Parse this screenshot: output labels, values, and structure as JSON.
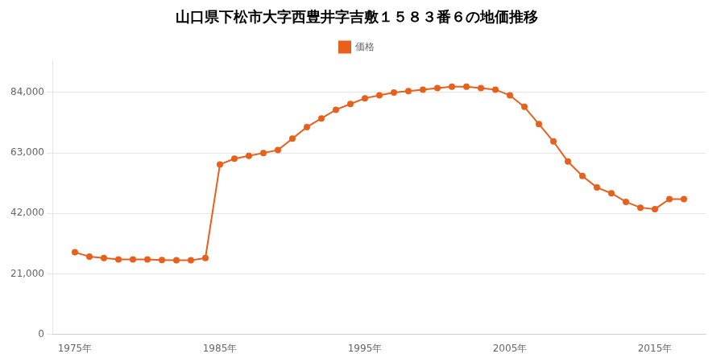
{
  "chart_data": {
    "type": "line",
    "title": "山口県下松市大字西豊井字吉敷１５８３番６の地価推移",
    "x": [
      1975,
      1976,
      1977,
      1978,
      1979,
      1980,
      1981,
      1982,
      1983,
      1984,
      1985,
      1986,
      1987,
      1988,
      1989,
      1990,
      1991,
      1992,
      1993,
      1994,
      1995,
      1996,
      1997,
      1998,
      1999,
      2000,
      2001,
      2002,
      2003,
      2004,
      2005,
      2006,
      2007,
      2008,
      2009,
      2010,
      2011,
      2012,
      2013,
      2014,
      2015,
      2016,
      2017
    ],
    "series": [
      {
        "name": "価格",
        "color": "#e8601c",
        "values": [
          28500,
          27000,
          26500,
          26000,
          26000,
          26000,
          25800,
          25700,
          25700,
          26500,
          59000,
          61000,
          62000,
          63000,
          64000,
          68000,
          72000,
          75000,
          78000,
          80000,
          82000,
          83000,
          84000,
          84500,
          85000,
          85500,
          86000,
          86000,
          85500,
          85000,
          83000,
          79000,
          73000,
          67000,
          60000,
          55000,
          51000,
          49000,
          46000,
          44000,
          43500,
          47000,
          47000
        ]
      }
    ],
    "xlim": [
      1973.5,
      2018.5
    ],
    "xticks": [
      {
        "value": 1975,
        "label": "1975年"
      },
      {
        "value": 1985,
        "label": "1985年"
      },
      {
        "value": 1995,
        "label": "1995年"
      },
      {
        "value": 2005,
        "label": "2005年"
      },
      {
        "value": 2015,
        "label": "2015年"
      }
    ],
    "ylim": [
      0,
      95000
    ],
    "yticks": [
      0,
      {
        "value": 21000,
        "label": "21,000"
      },
      {
        "value": 42000,
        "label": "42,000"
      },
      {
        "value": 63000,
        "label": "63,000"
      },
      {
        "value": 84000,
        "label": "84,000"
      }
    ],
    "grid": true,
    "legend": "top",
    "marker": "circle"
  }
}
